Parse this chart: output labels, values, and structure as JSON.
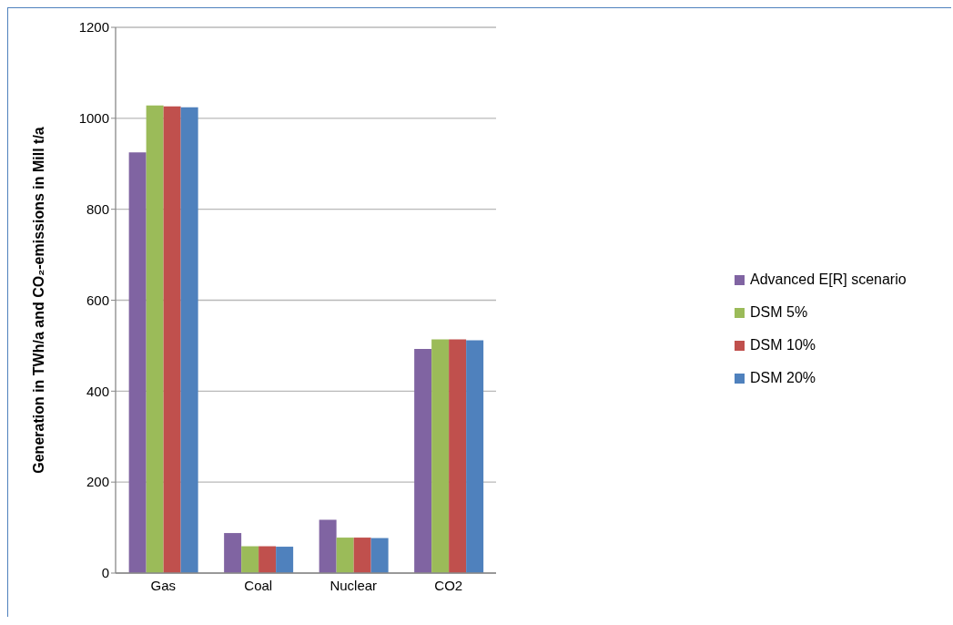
{
  "chart_data": {
    "type": "bar",
    "ylabel": "Generation in TWh/a and CO₂-emissions in Mill t/a",
    "categories": [
      "Gas",
      "Coal",
      "Nuclear",
      "CO2"
    ],
    "series": [
      {
        "name": "Advanced E[R] scenario",
        "color": "#8064a2",
        "values": [
          925,
          88,
          117,
          493
        ]
      },
      {
        "name": "DSM 5%",
        "color": "#9bbb59",
        "values": [
          1028,
          59,
          78,
          514
        ]
      },
      {
        "name": "DSM 10%",
        "color": "#c0504d",
        "values": [
          1026,
          59,
          78,
          514
        ]
      },
      {
        "name": "DSM 20%",
        "color": "#4f81bd",
        "values": [
          1024,
          58,
          77,
          512
        ]
      }
    ],
    "ylim": [
      0,
      1200
    ],
    "yticks": [
      0,
      200,
      400,
      600,
      800,
      1000,
      1200
    ],
    "grid": "y",
    "legend": "right"
  }
}
